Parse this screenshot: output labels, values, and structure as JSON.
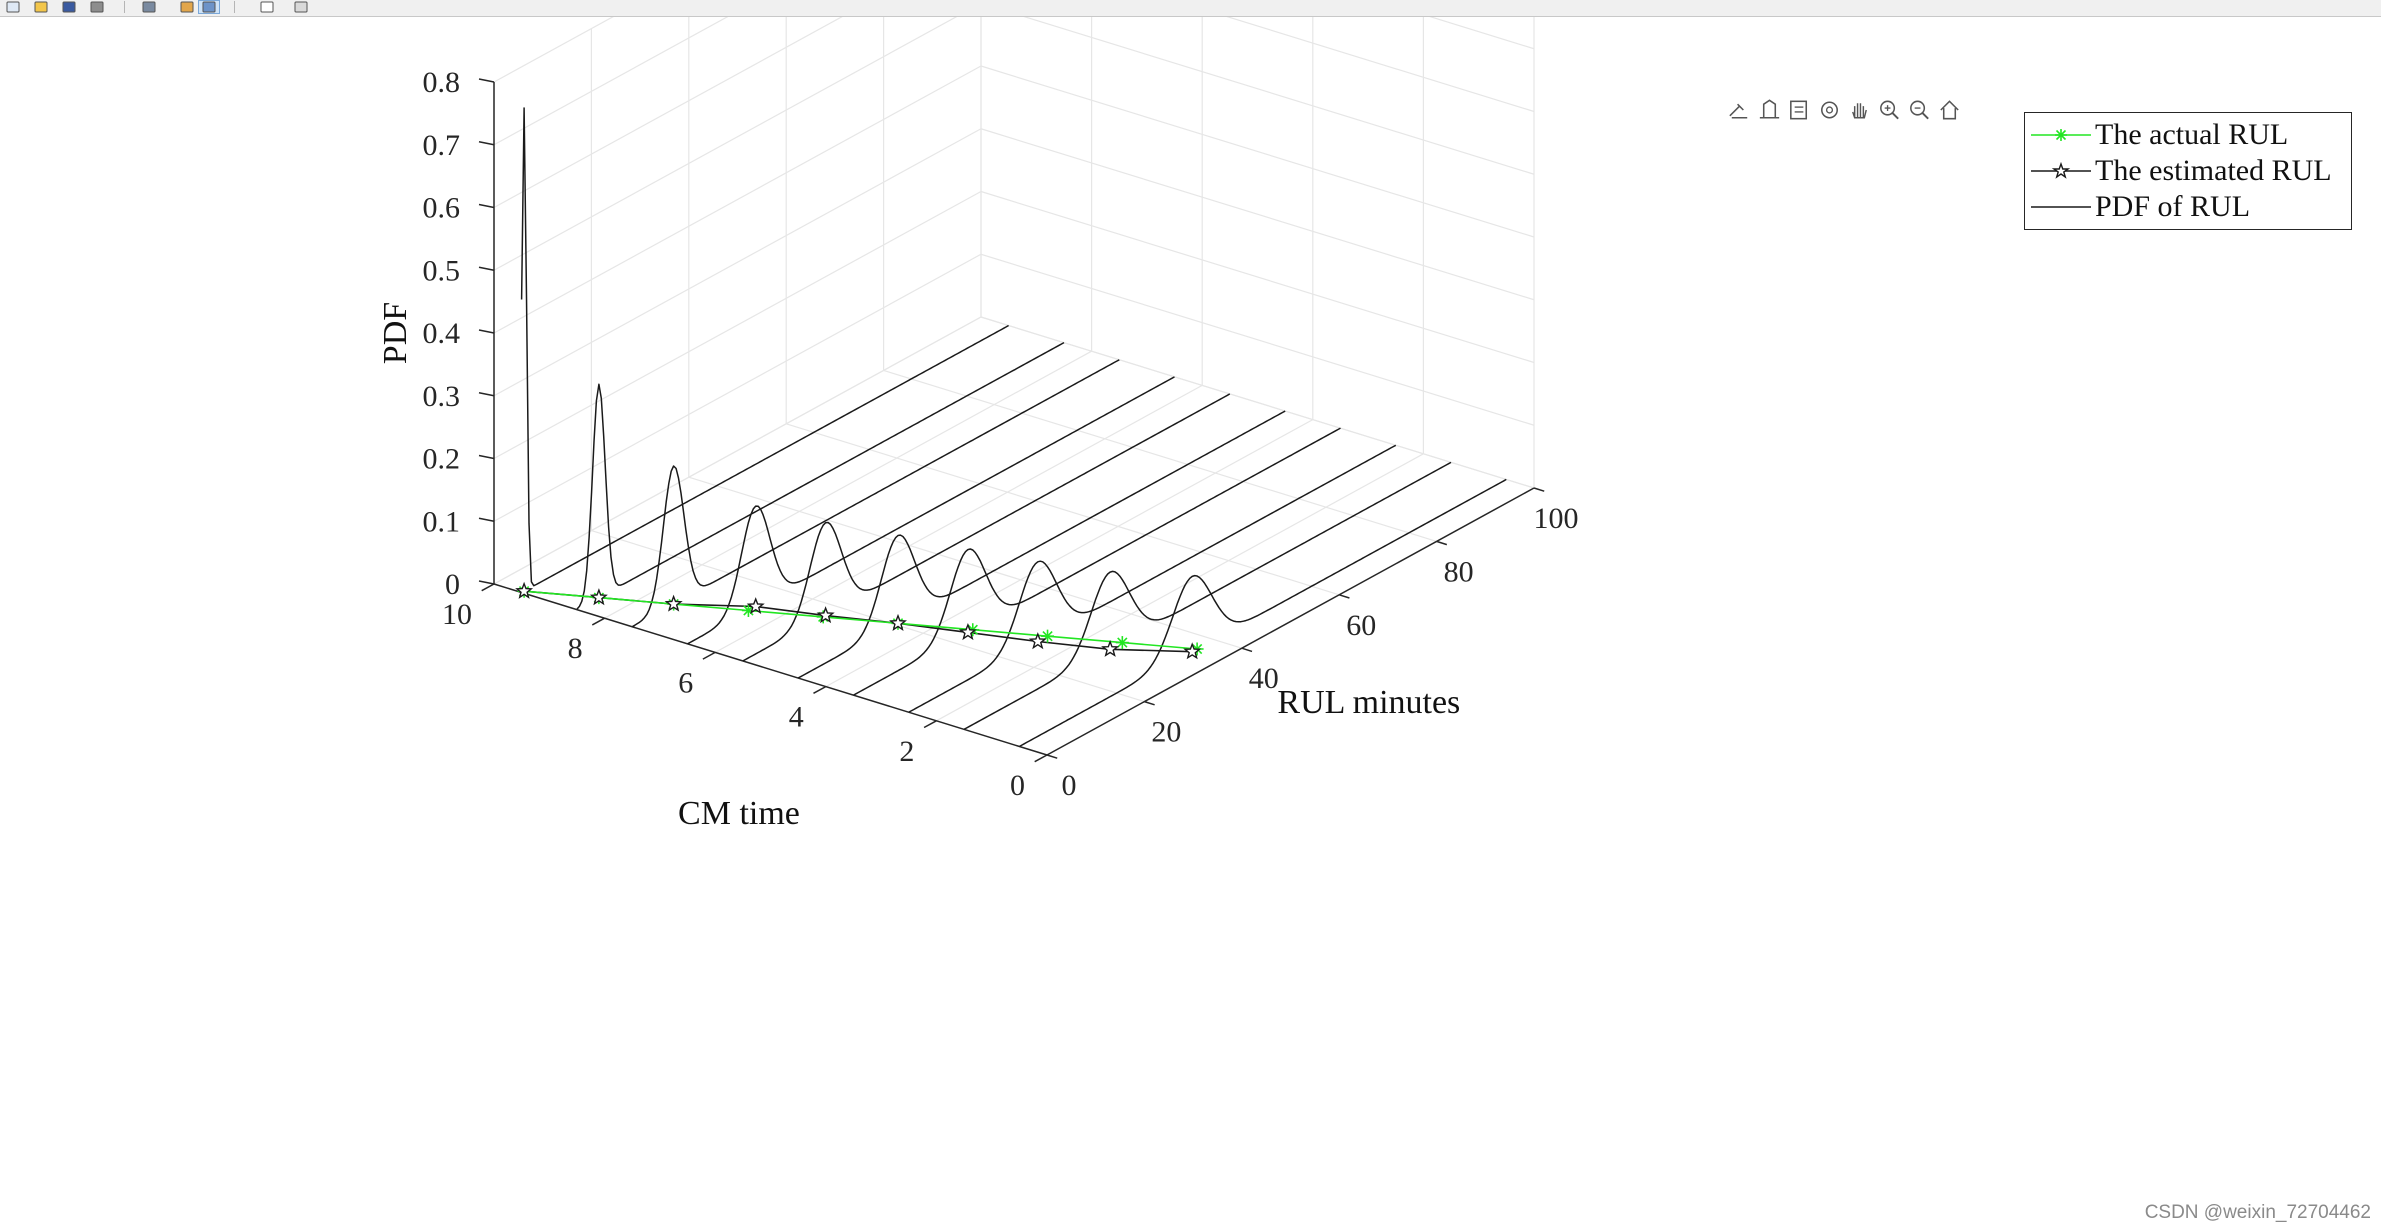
{
  "toolbar": {
    "buttons": [
      {
        "name": "new-figure-icon"
      },
      {
        "name": "open-file-icon"
      },
      {
        "name": "save-icon"
      },
      {
        "name": "print-icon"
      },
      {
        "name": "link-plot-icon"
      },
      {
        "name": "insert-colorbar-icon"
      },
      {
        "name": "insert-legend-icon"
      },
      {
        "name": "edit-plot-icon"
      },
      {
        "name": "property-inspector-icon"
      }
    ]
  },
  "axes_toolbar": {
    "buttons": [
      {
        "name": "brush-icon"
      },
      {
        "name": "data-cursor-icon"
      },
      {
        "name": "data-tips-icon"
      },
      {
        "name": "rotate-3d-icon"
      },
      {
        "name": "pan-icon"
      },
      {
        "name": "zoom-in-icon"
      },
      {
        "name": "zoom-out-icon"
      },
      {
        "name": "home-icon"
      }
    ]
  },
  "colors": {
    "actual": "#22e622",
    "estimated": "#1a1a1a",
    "pdf": "#1a1a1a",
    "grid": "#e6e6e6",
    "axis": "#262626"
  },
  "chart_data": {
    "type": "line",
    "projection": "3d",
    "xlabel": "RUL minutes",
    "ylabel": "CM time",
    "zlabel": "PDF",
    "xlim": [
      0,
      100
    ],
    "ylim": [
      0,
      10
    ],
    "zlim": [
      0,
      0.8
    ],
    "xticks": [
      "0",
      "20",
      "40",
      "60",
      "80",
      "100"
    ],
    "yticks": [
      "0",
      "2",
      "4",
      "6",
      "8",
      "10"
    ],
    "zticks": [
      "0",
      "0.1",
      "0.2",
      "0.3",
      "0.4",
      "0.5",
      "0.6",
      "0.7",
      "0.8"
    ],
    "grid": true,
    "legend": {
      "location": "top-right",
      "entries": [
        "The actual RUL",
        "The estimated RUL",
        "PDF of RUL"
      ]
    },
    "cm_time": [
      9.5,
      8.5,
      7.5,
      6.5,
      5.5,
      4.5,
      3.5,
      2.5,
      1.5,
      0.5
    ],
    "series": [
      {
        "name": "The actual RUL",
        "marker": "*",
        "y": [
          9.5,
          8.5,
          7.5,
          6.5,
          5.5,
          4.5,
          3.5,
          2.5,
          1.5,
          0.5
        ],
        "x": [
          0.5,
          4.5,
          8.5,
          12.5,
          16.5,
          20.5,
          24.5,
          28.5,
          32.5,
          36.5
        ],
        "z": [
          0,
          0,
          0,
          0,
          0,
          0,
          0,
          0,
          0,
          0
        ]
      },
      {
        "name": "The estimated RUL",
        "marker": "pentagram",
        "y": [
          9.5,
          8.5,
          7.5,
          6.5,
          5.5,
          4.5,
          3.5,
          2.5,
          1.5,
          0.5
        ],
        "x": [
          0.5,
          4.5,
          8.5,
          14.0,
          17.0,
          20.5,
          23.5,
          26.5,
          30.0,
          35.5
        ],
        "z": [
          0,
          0,
          0,
          0,
          0,
          0,
          0,
          0,
          0,
          0
        ]
      },
      {
        "name": "PDF of RUL",
        "peaks": [
          {
            "y": 9.5,
            "mean": 0.5,
            "sd": 0.5,
            "peak": 0.77
          },
          {
            "y": 8.5,
            "mean": 4.5,
            "sd": 1.3,
            "peak": 0.34
          },
          {
            "y": 7.5,
            "mean": 8.5,
            "sd": 2.1,
            "peak": 0.22
          },
          {
            "y": 6.5,
            "mean": 14.0,
            "sd": 2.9,
            "peak": 0.16
          },
          {
            "y": 5.5,
            "mean": 17.0,
            "sd": 3.2,
            "peak": 0.148
          },
          {
            "y": 4.5,
            "mean": 20.5,
            "sd": 3.4,
            "peak": 0.14
          },
          {
            "y": 3.5,
            "mean": 23.5,
            "sd": 3.6,
            "peak": 0.132
          },
          {
            "y": 2.5,
            "mean": 26.5,
            "sd": 3.8,
            "peak": 0.127
          },
          {
            "y": 1.5,
            "mean": 30.0,
            "sd": 3.9,
            "peak": 0.123
          },
          {
            "y": 0.5,
            "mean": 35.5,
            "sd": 4.0,
            "peak": 0.12
          }
        ]
      }
    ]
  },
  "watermark": "CSDN @weixin_72704462"
}
